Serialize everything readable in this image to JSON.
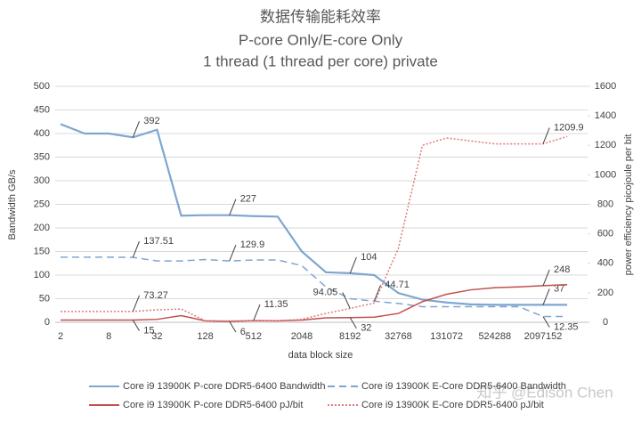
{
  "chart_data": {
    "type": "line",
    "title": "数据传输能耗效率",
    "subtitle": [
      "P-core Only/E-core Only",
      "1 thread (1 thread per core) private"
    ],
    "x_label": "data block size",
    "y_label": "Bandwidth GB/s",
    "y2_label": "power efficiency picojoule per bit",
    "watermark": "知乎 @Edison Chen",
    "categories": [
      "2",
      null,
      "8",
      null,
      "32",
      null,
      "128",
      null,
      "512",
      null,
      "2048",
      null,
      "8192",
      null,
      "32768",
      null,
      "131072",
      null,
      "524288",
      null,
      "2097152",
      null
    ],
    "ylim": [
      0,
      500
    ],
    "yticks": [
      0,
      50,
      100,
      150,
      200,
      250,
      300,
      350,
      400,
      450,
      500
    ],
    "y2lim": [
      0,
      1600
    ],
    "y2ticks": [
      0,
      200,
      400,
      600,
      800,
      1000,
      1200,
      1400,
      1600
    ],
    "legend": "bottom",
    "series": [
      {
        "name": "Core i9 13900K P-core DDR5-6400 Bandwidth",
        "color": "#7ea6d0",
        "dash": "solid",
        "values": [
          420,
          400,
          400,
          392,
          408,
          226,
          227,
          227,
          225,
          224,
          150,
          106,
          104,
          100,
          62,
          48,
          42,
          38,
          37,
          37,
          37,
          37
        ],
        "value_labels": [
          null,
          null,
          null,
          "392",
          null,
          null,
          null,
          "227",
          null,
          null,
          null,
          null,
          "104",
          null,
          null,
          null,
          null,
          null,
          null,
          null,
          "37",
          null
        ]
      },
      {
        "name": "Core i9 13900K E-Core DDR5-6400 Bandwidth",
        "color": "#7ea6d0",
        "dash": "dashed",
        "values": [
          138,
          138,
          138,
          137.51,
          130,
          130,
          133,
          129.9,
          132,
          132,
          120,
          75,
          50,
          44.71,
          40,
          33,
          33,
          33,
          33,
          33,
          12.35,
          12.35
        ],
        "value_labels": [
          null,
          null,
          null,
          "137.51",
          null,
          null,
          null,
          "129.9",
          null,
          null,
          null,
          null,
          null,
          "44.71",
          null,
          null,
          null,
          null,
          null,
          null,
          "12.35",
          null
        ]
      },
      {
        "name": "Core i9 13900K P-core DDR5-6400 pJ/bit",
        "color": "#c0504d",
        "dash": "solid",
        "axis": "y2",
        "values": [
          15,
          15,
          15,
          15,
          20,
          45,
          10,
          6,
          11.35,
          10,
          15,
          30,
          32,
          35,
          60,
          140,
          190,
          220,
          235,
          240,
          248,
          255
        ],
        "value_labels": [
          null,
          null,
          null,
          "15",
          null,
          null,
          null,
          "6",
          "11.35",
          null,
          null,
          null,
          "32",
          null,
          null,
          null,
          null,
          null,
          null,
          null,
          "248",
          null
        ]
      },
      {
        "name": "Core i9 13900K E-Core DDR5-6400 pJ/bit",
        "color": "#e07a78",
        "dash": "dotted",
        "axis": "y2",
        "values": [
          73,
          73,
          73,
          73.27,
          85,
          90,
          10,
          10,
          10,
          10,
          20,
          60,
          94.05,
          130,
          500,
          1200,
          1250,
          1230,
          1210,
          1210,
          1209.9,
          1260
        ],
        "value_labels": [
          null,
          null,
          null,
          "73.27",
          null,
          null,
          null,
          null,
          null,
          null,
          null,
          null,
          "94.05",
          null,
          null,
          null,
          null,
          null,
          null,
          null,
          "1209.9",
          null
        ]
      }
    ]
  }
}
